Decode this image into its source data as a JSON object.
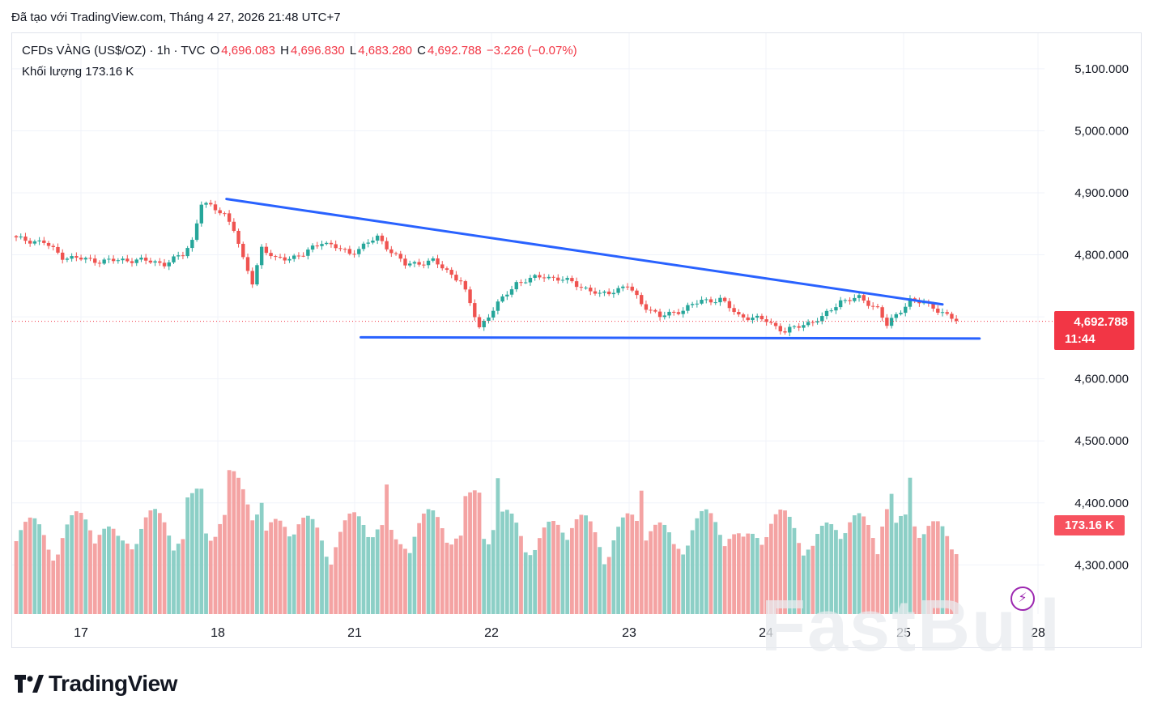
{
  "header": {
    "caption": "Đã tạo với TradingView.com, Tháng 4 27, 2026 21:48 UTC+7"
  },
  "legend": {
    "symbol": "CFDs VÀNG (US$/OZ) · 1h · TVC",
    "o_label": "O",
    "o_value": "4,696.083",
    "h_label": "H",
    "h_value": "4,696.830",
    "l_label": "L",
    "l_value": "4,683.280",
    "c_label": "C",
    "c_value": "4,692.788",
    "change": "−3.226 (−0.07%)",
    "volume_label": "Khối lượng",
    "volume_value": "173.16 K"
  },
  "price_tag": {
    "price": "4,692.788",
    "countdown": "11:44"
  },
  "volume_tag": "173.16 K",
  "logo": {
    "text": "TradingView"
  },
  "watermark": "FastBull",
  "colors": {
    "up": "#26a69a",
    "down": "#ef5350",
    "up_volume": "#8ccfc6",
    "down_volume": "#f4a3a3",
    "trendline": "#2962ff",
    "price_line": "#f23645"
  },
  "chart_data": {
    "type": "candlestick",
    "ylim": [
      4240,
      5150
    ],
    "y_ticks": [
      "5,100.000",
      "5,000.000",
      "4,900.000",
      "4,800.000",
      "4,700.000",
      "4,600.000",
      "4,500.000",
      "4,400.000",
      "4,300.000"
    ],
    "y_tick_values": [
      5100,
      5000,
      4900,
      4800,
      4700,
      4600,
      4500,
      4400,
      4300
    ],
    "x_ticks": [
      "17",
      "18",
      "21",
      "22",
      "23",
      "24",
      "25",
      "28"
    ],
    "anchors": [
      {
        "i": 0,
        "c": 4826
      },
      {
        "i": 6,
        "c": 4820
      },
      {
        "i": 10,
        "c": 4797
      },
      {
        "i": 18,
        "c": 4790
      },
      {
        "i": 26,
        "c": 4792
      },
      {
        "i": 32,
        "c": 4786
      },
      {
        "i": 36,
        "c": 4800
      },
      {
        "i": 38,
        "c": 4823
      },
      {
        "i": 40,
        "c": 4884
      },
      {
        "i": 45,
        "c": 4866
      },
      {
        "i": 47,
        "c": 4842
      },
      {
        "i": 49,
        "c": 4791
      },
      {
        "i": 51,
        "c": 4756
      },
      {
        "i": 53,
        "c": 4812
      },
      {
        "i": 56,
        "c": 4792
      },
      {
        "i": 62,
        "c": 4800
      },
      {
        "i": 66,
        "c": 4822
      },
      {
        "i": 72,
        "c": 4802
      },
      {
        "i": 78,
        "c": 4828
      },
      {
        "i": 84,
        "c": 4784
      },
      {
        "i": 90,
        "c": 4790
      },
      {
        "i": 96,
        "c": 4758
      },
      {
        "i": 100,
        "c": 4683
      },
      {
        "i": 103,
        "c": 4712
      },
      {
        "i": 108,
        "c": 4755
      },
      {
        "i": 114,
        "c": 4766
      },
      {
        "i": 120,
        "c": 4756
      },
      {
        "i": 126,
        "c": 4735
      },
      {
        "i": 132,
        "c": 4750
      },
      {
        "i": 135,
        "c": 4722
      },
      {
        "i": 139,
        "c": 4700
      },
      {
        "i": 144,
        "c": 4712
      },
      {
        "i": 148,
        "c": 4726
      },
      {
        "i": 152,
        "c": 4728
      },
      {
        "i": 156,
        "c": 4702
      },
      {
        "i": 162,
        "c": 4694
      },
      {
        "i": 166,
        "c": 4676
      },
      {
        "i": 170,
        "c": 4688
      },
      {
        "i": 174,
        "c": 4698
      },
      {
        "i": 178,
        "c": 4726
      },
      {
        "i": 182,
        "c": 4730
      },
      {
        "i": 186,
        "c": 4714
      },
      {
        "i": 188,
        "c": 4686
      },
      {
        "i": 190,
        "c": 4702
      },
      {
        "i": 193,
        "c": 4728
      },
      {
        "i": 198,
        "c": 4716
      },
      {
        "i": 203,
        "c": 4693
      }
    ],
    "trendlines": [
      {
        "name": "resistance",
        "from": {
          "i": 44,
          "v": 4890
        },
        "to": {
          "i": 200,
          "v": 4720
        }
      },
      {
        "name": "support",
        "from": {
          "i": 73,
          "v": 4667
        },
        "to": {
          "i": 208,
          "v": 4665
        }
      }
    ],
    "current_price": 4692.788
  }
}
